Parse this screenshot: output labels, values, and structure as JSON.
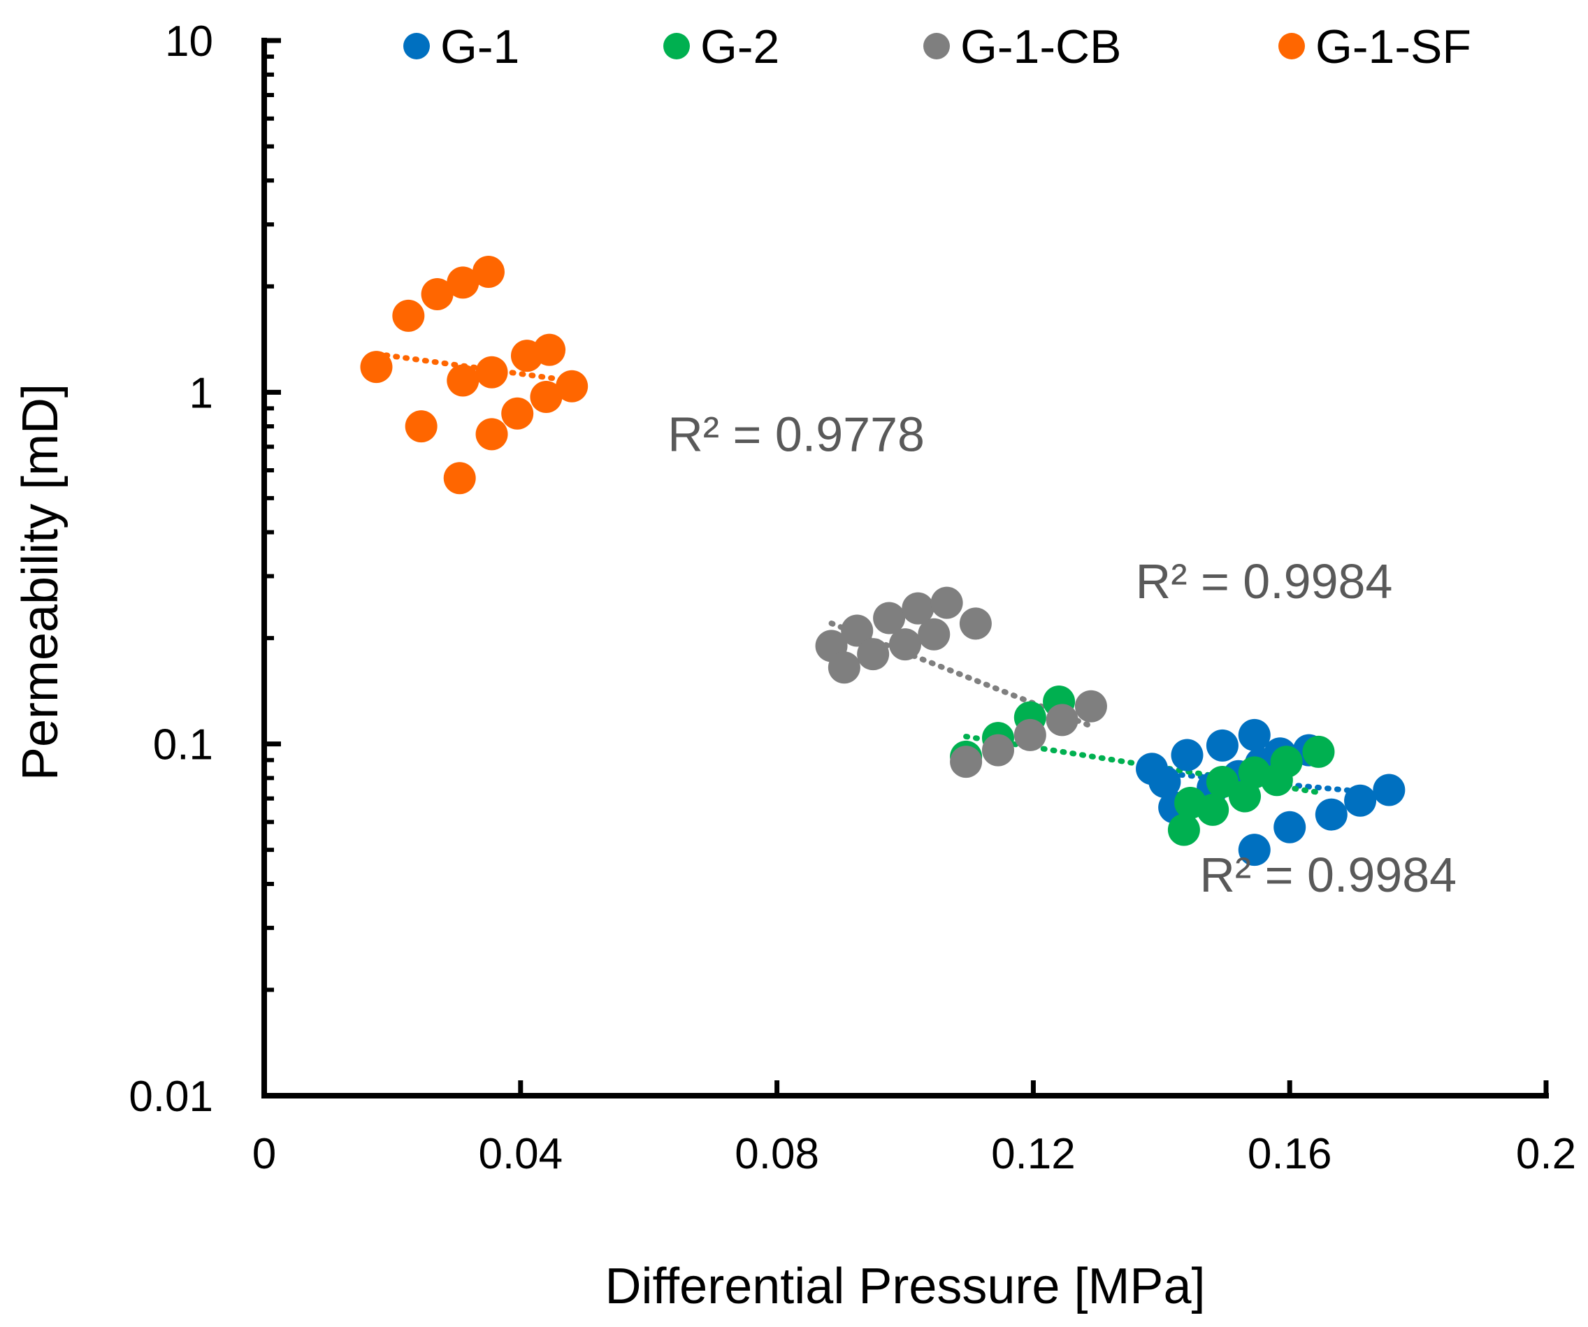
{
  "chart_data": {
    "type": "scatter",
    "xlabel": "Differential Pressure [MPa]",
    "ylabel": "Permeability [mD]",
    "xlim": [
      0,
      0.2
    ],
    "ylim": [
      0.01,
      10
    ],
    "yscale": "log",
    "x_ticks": [
      "0",
      "0.04",
      "0.08",
      "0.12",
      "0.16",
      "0.2"
    ],
    "y_ticks": [
      "0.01",
      "0.1",
      "1",
      "10"
    ],
    "grid": false,
    "legend_position": "top",
    "series": [
      {
        "name": "G-1",
        "color": "#0070C0",
        "points": [
          [
            0.1385,
            0.085
          ],
          [
            0.1405,
            0.078
          ],
          [
            0.142,
            0.066
          ],
          [
            0.144,
            0.093
          ],
          [
            0.148,
            0.075
          ],
          [
            0.1495,
            0.099
          ],
          [
            0.152,
            0.081
          ],
          [
            0.1545,
            0.106
          ],
          [
            0.1555,
            0.088
          ],
          [
            0.1585,
            0.094
          ],
          [
            0.163,
            0.096
          ],
          [
            0.1545,
            0.05
          ],
          [
            0.16,
            0.058
          ],
          [
            0.1665,
            0.063
          ],
          [
            0.171,
            0.069
          ],
          [
            0.1755,
            0.074
          ]
        ]
      },
      {
        "name": "G-2",
        "color": "#00B050",
        "points": [
          [
            0.1095,
            0.092
          ],
          [
            0.1145,
            0.104
          ],
          [
            0.1195,
            0.119
          ],
          [
            0.124,
            0.132
          ],
          [
            0.1435,
            0.057
          ],
          [
            0.1445,
            0.068
          ],
          [
            0.148,
            0.065
          ],
          [
            0.1495,
            0.078
          ],
          [
            0.153,
            0.071
          ],
          [
            0.1545,
            0.083
          ],
          [
            0.158,
            0.079
          ],
          [
            0.1595,
            0.089
          ],
          [
            0.1645,
            0.095
          ]
        ]
      },
      {
        "name": "G-1-CB",
        "color": "#7F7F7F",
        "points": [
          [
            0.0885,
            0.19
          ],
          [
            0.0905,
            0.165
          ],
          [
            0.0925,
            0.21
          ],
          [
            0.095,
            0.18
          ],
          [
            0.0975,
            0.228
          ],
          [
            0.1,
            0.192
          ],
          [
            0.102,
            0.243
          ],
          [
            0.1045,
            0.205
          ],
          [
            0.1065,
            0.252
          ],
          [
            0.111,
            0.22
          ],
          [
            0.1095,
            0.089
          ],
          [
            0.1145,
            0.096
          ],
          [
            0.1195,
            0.106
          ],
          [
            0.1245,
            0.117
          ],
          [
            0.129,
            0.128
          ]
        ]
      },
      {
        "name": "G-1-SF",
        "color": "#FF6600",
        "points": [
          [
            0.0175,
            1.18
          ],
          [
            0.0225,
            1.65
          ],
          [
            0.027,
            1.9
          ],
          [
            0.031,
            2.05
          ],
          [
            0.035,
            2.2
          ],
          [
            0.0245,
            0.8
          ],
          [
            0.031,
            1.08
          ],
          [
            0.0355,
            1.14
          ],
          [
            0.041,
            1.27
          ],
          [
            0.0445,
            1.32
          ],
          [
            0.0305,
            0.57
          ],
          [
            0.0355,
            0.76
          ],
          [
            0.0395,
            0.87
          ],
          [
            0.044,
            0.97
          ],
          [
            0.048,
            1.04
          ]
        ]
      }
    ],
    "annotations": [
      {
        "text": "R² = 0.9778",
        "x": 0.083,
        "y": 0.68
      },
      {
        "text": "R² = 0.9984",
        "x": 0.156,
        "y": 0.26
      },
      {
        "text": "R² = 0.9984",
        "x": 0.166,
        "y": 0.038
      }
    ]
  }
}
